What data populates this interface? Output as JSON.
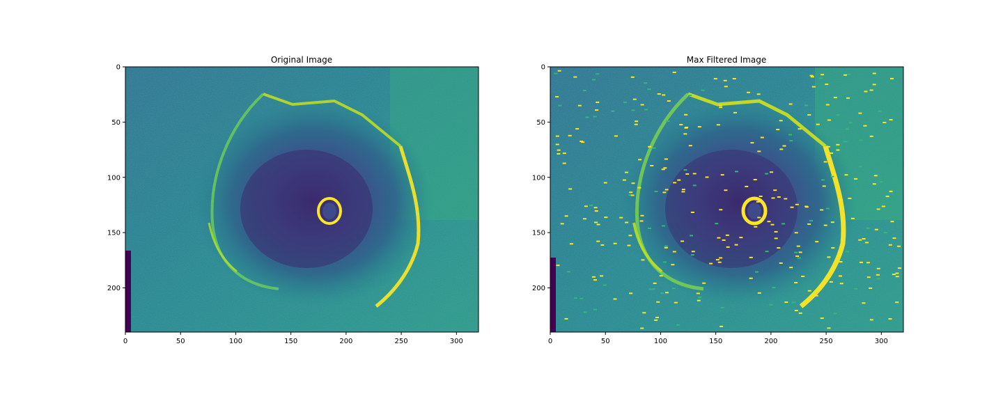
{
  "figure": {
    "panels": [
      {
        "title": "Original Image",
        "xticks": [
          "0",
          "50",
          "100",
          "150",
          "200",
          "250",
          "300"
        ],
        "yticks": [
          "0",
          "50",
          "100",
          "150",
          "200"
        ],
        "xlim": [
          0,
          320
        ],
        "ylim": [
          240,
          0
        ],
        "colormap": "viridis",
        "speckles": false
      },
      {
        "title": "Max Filtered Image",
        "xticks": [
          "0",
          "50",
          "100",
          "150",
          "200",
          "250",
          "300"
        ],
        "yticks": [
          "0",
          "50",
          "100",
          "150",
          "200"
        ],
        "xlim": [
          0,
          320
        ],
        "ylim": [
          240,
          0
        ],
        "colormap": "viridis",
        "speckles": true
      }
    ],
    "colors": {
      "viridis_dark": "#440154",
      "viridis_blue": "#31688e",
      "viridis_teal": "#21918c",
      "viridis_green": "#35b779",
      "viridis_yellow": "#fde725"
    }
  }
}
